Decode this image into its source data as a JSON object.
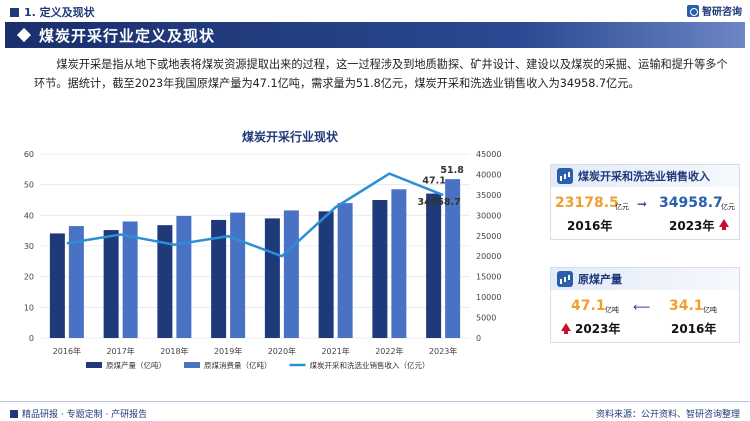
{
  "header": {
    "section": "1. 定义及现状",
    "brand": "智研咨询",
    "title": "煤炭开采行业定义及现状"
  },
  "intro": "煤炭开采是指从地下或地表将煤炭资源提取出来的过程，这一过程涉及到地质勘探、矿井设计、建设以及煤炭的采掘、运输和提升等多个环节。据统计，截至2023年我国原煤产量为47.1亿吨，需求量为51.8亿元，煤炭开采和洗选业销售收入为34958.7亿元。",
  "chart_data": {
    "type": "bar",
    "title": "煤炭开采行业现状",
    "categories": [
      "2016年",
      "2017年",
      "2018年",
      "2019年",
      "2020年",
      "2021年",
      "2022年",
      "2023年"
    ],
    "series": [
      {
        "name": "原煤产量（亿吨）",
        "type": "bar",
        "axis": "left",
        "color": "#1f3a7a",
        "values": [
          34.1,
          35.2,
          36.8,
          38.5,
          39.0,
          41.3,
          45.0,
          47.1
        ]
      },
      {
        "name": "原煤消费量（亿吨）",
        "type": "bar",
        "axis": "left",
        "color": "#4a72c4",
        "values": [
          36.5,
          38.0,
          39.8,
          40.9,
          41.6,
          44.0,
          48.5,
          51.8
        ]
      },
      {
        "name": "煤炭开采和洗选业销售收入（亿元）",
        "type": "line",
        "axis": "right",
        "color": "#2b8fd6",
        "values": [
          23178.5,
          25300,
          22800,
          24900,
          20000,
          32000,
          40200,
          34958.7
        ]
      }
    ],
    "left_axis": {
      "ylim": [
        0,
        60
      ],
      "ticks": [
        0,
        10,
        20,
        30,
        40,
        50,
        60
      ]
    },
    "right_axis": {
      "ylim": [
        0,
        45000
      ],
      "ticks": [
        0,
        5000,
        10000,
        15000,
        20000,
        25000,
        30000,
        35000,
        40000,
        45000
      ]
    },
    "annotations": [
      "51.8",
      "47.1",
      "34958.7"
    ],
    "legend_position": "bottom",
    "grid": true
  },
  "cards": {
    "revenue": {
      "title": "煤炭开采和洗选业销售收入",
      "from_value": "23178.5",
      "from_unit": "亿元",
      "from_year": "2016年",
      "to_value": "34958.7",
      "to_unit": "亿元",
      "to_year": "2023年"
    },
    "output": {
      "title": "原煤产量",
      "latest_value": "47.1",
      "latest_unit": "亿吨",
      "latest_year": "2023年",
      "base_value": "34.1",
      "base_unit": "亿吨",
      "base_year": "2016年"
    }
  },
  "footer": {
    "left": "精品研报 · 专题定制 · 产研报告",
    "right": "资料来源：公开资料、智研咨询整理"
  }
}
